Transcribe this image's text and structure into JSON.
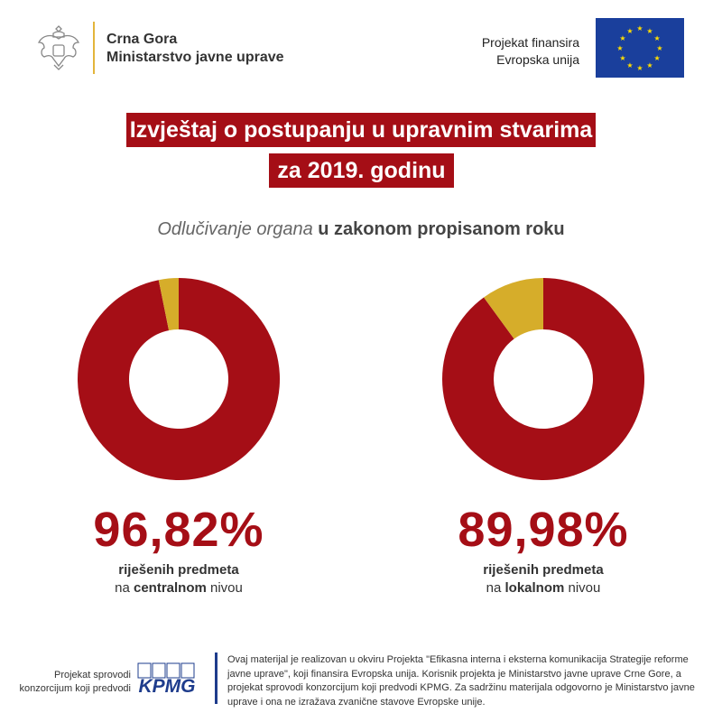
{
  "header": {
    "gov_line1": "Crna Gora",
    "gov_line2": "Ministarstvo javne uprave",
    "eu_line1": "Projekat finansira",
    "eu_line2": "Evropska unija",
    "brand_color": "#a50e16",
    "accent_color": "#e3b53b"
  },
  "title": {
    "line1": "Izvještaj o postupanju u upravnim stvarima",
    "line2": "za 2019. godinu"
  },
  "subtitle": {
    "italic": "Odlučivanje organa",
    "bold": "u zakonom propisanom roku"
  },
  "chart_data": [
    {
      "type": "pie",
      "variant": "donut",
      "slices": [
        {
          "label": "riješenih predmeta",
          "value": 96.82,
          "color": "#a50e16"
        },
        {
          "value": 3.18,
          "color": "#d6ad2a"
        }
      ],
      "value_label": "96,82%",
      "caption_line1": "riješenih predmeta",
      "caption_pre": "na ",
      "caption_bold": "centralnom",
      "caption_post": " nivou"
    },
    {
      "type": "pie",
      "variant": "donut",
      "slices": [
        {
          "label": "riješenih predmeta",
          "value": 89.98,
          "color": "#a50e16"
        },
        {
          "value": 10.02,
          "color": "#d6ad2a"
        }
      ],
      "value_label": "89,98%",
      "caption_line1": "riješenih predmeta",
      "caption_pre": "na ",
      "caption_bold": "lokalnom",
      "caption_post": " nivou"
    }
  ],
  "footer": {
    "left_line1": "Projekat sprovodi",
    "left_line2": "konzorcijum koji predvodi",
    "logo": "KPMG",
    "note": "Ovaj materijal je realizovan u okviru Projekta \"Efikasna interna i eksterna komunikacija Strategije reforme javne uprave\", koji finansira Evropska unija. Korisnik projekta je Ministarstvo javne uprave Crne Gore, a projekat sprovodi konzorcijum koji predvodi KPMG. Za sadržinu materijala odgovorno je Ministarstvo javne uprave i ona ne izražava zvanične stavove Evropske unije."
  }
}
